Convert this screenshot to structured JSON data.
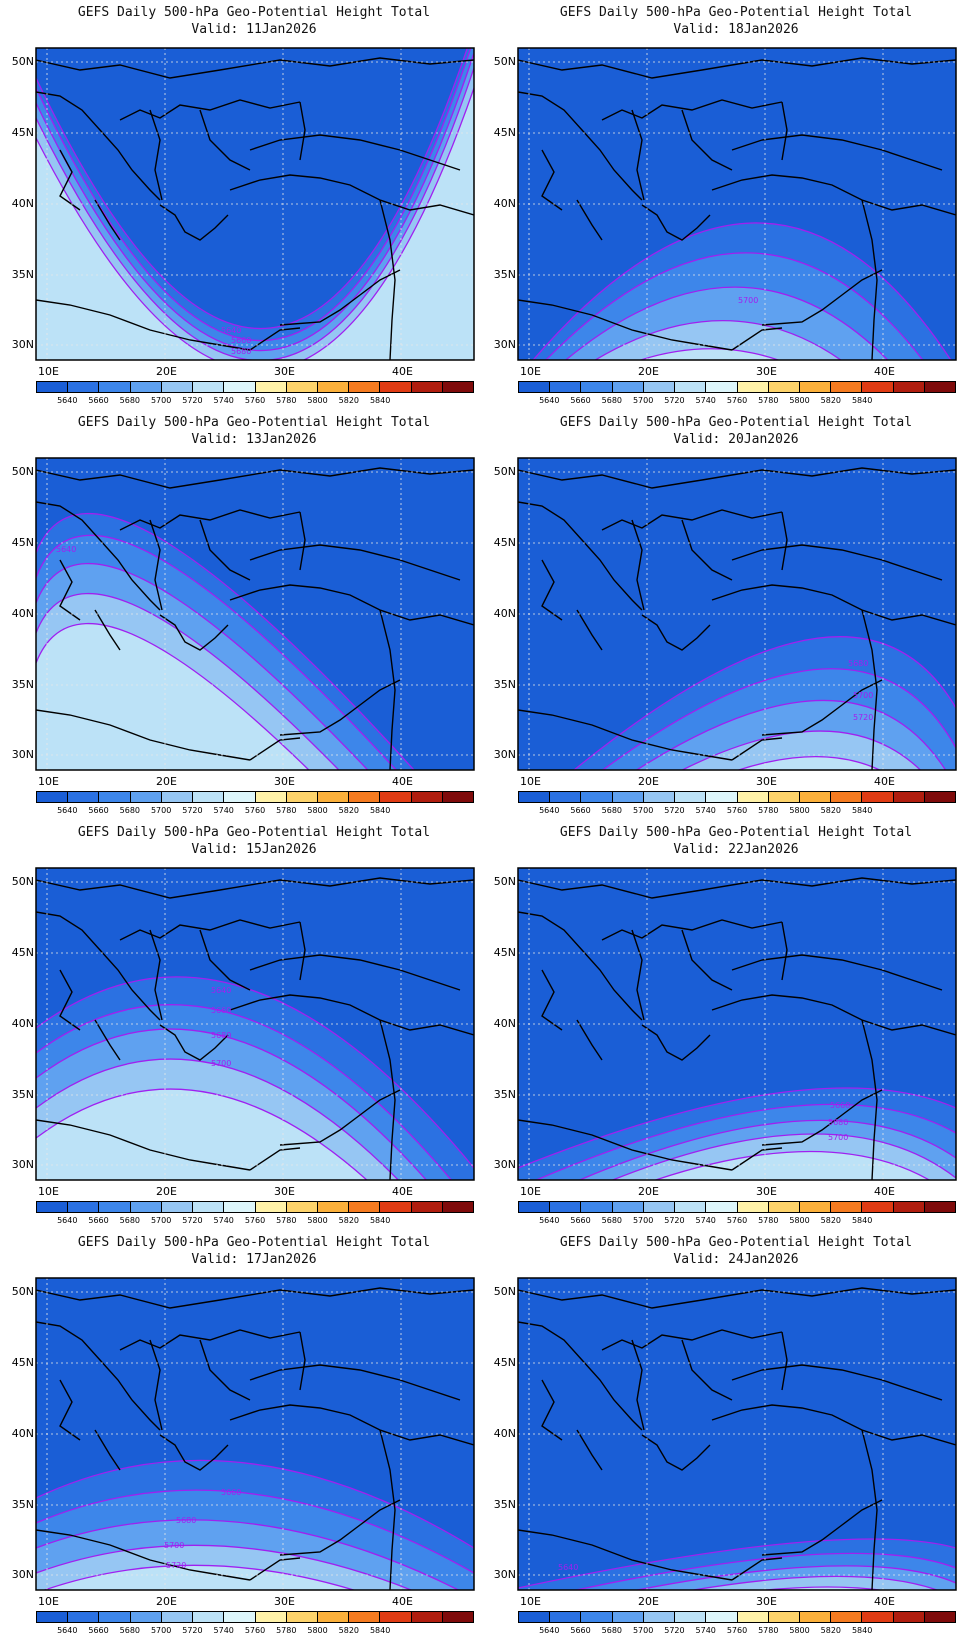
{
  "colorbar": {
    "colors": [
      "#1a5ed6",
      "#2b71e2",
      "#3d86ea",
      "#5fa1f0",
      "#96c6f3",
      "#bce2f7",
      "#ddf6fb",
      "#fff2a8",
      "#fdd36b",
      "#fbb03b",
      "#f57b20",
      "#e03b13",
      "#b01d0e",
      "#7f0b0b"
    ],
    "labels": [
      "5640",
      "5660",
      "5680",
      "5700",
      "5720",
      "5740",
      "5760",
      "5780",
      "5800",
      "5820",
      "5840"
    ]
  },
  "lat_labels": [
    "50N",
    "45N",
    "40N",
    "35N",
    "30N"
  ],
  "lon_labels": [
    "10E",
    "20E",
    "30E",
    "40E"
  ],
  "contour_color": "#a020f0",
  "panels": [
    {
      "title": "GEFS Daily 500-hPa Geo-Potential Height Total",
      "valid": "Valid: 11Jan2026",
      "contour_labels": [
        "5640",
        "5660",
        "5680"
      ]
    },
    {
      "title": "GEFS Daily 500-hPa Geo-Potential Height Total",
      "valid": "Valid: 18Jan2026",
      "contour_labels": [
        "5700"
      ]
    },
    {
      "title": "GEFS Daily 500-hPa Geo-Potential Height Total",
      "valid": "Valid: 13Jan2026",
      "contour_labels": [
        "5640"
      ]
    },
    {
      "title": "GEFS Daily 500-hPa Geo-Potential Height Total",
      "valid": "Valid: 20Jan2026",
      "contour_labels": [
        "5680",
        "5700",
        "5720"
      ]
    },
    {
      "title": "GEFS Daily 500-hPa Geo-Potential Height Total",
      "valid": "Valid: 15Jan2026",
      "contour_labels": [
        "5640",
        "5660",
        "5680",
        "5700"
      ]
    },
    {
      "title": "GEFS Daily 500-hPa Geo-Potential Height Total",
      "valid": "Valid: 22Jan2026",
      "contour_labels": [
        "5660",
        "5680",
        "5700"
      ]
    },
    {
      "title": "GEFS Daily 500-hPa Geo-Potential Height Total",
      "valid": "Valid: 17Jan2026",
      "contour_labels": [
        "5660",
        "5680",
        "5700",
        "5720"
      ]
    },
    {
      "title": "GEFS Daily 500-hPa Geo-Potential Height Total",
      "valid": "Valid: 24Jan2026",
      "contour_labels": [
        "5640"
      ]
    }
  ]
}
